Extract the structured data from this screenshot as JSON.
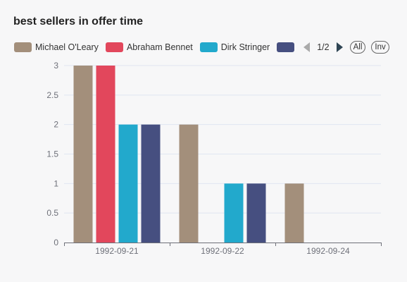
{
  "chart_data": {
    "type": "bar",
    "title": "best sellers in offer time",
    "categories": [
      "1992-09-21",
      "1992-09-22",
      "1992-09-24"
    ],
    "series": [
      {
        "name": "Michael O'Leary",
        "color": "#a38f7b",
        "values": [
          3,
          2,
          1
        ]
      },
      {
        "name": "Abraham Bennet",
        "color": "#e2475c",
        "values": [
          3,
          0,
          0
        ]
      },
      {
        "name": "Dirk Stringer",
        "color": "#22a9cc",
        "values": [
          2,
          1,
          0
        ]
      },
      {
        "name": "",
        "color": "#464f80",
        "values": [
          2,
          1,
          0
        ]
      }
    ],
    "yticks": [
      "0",
      "0.5",
      "1",
      "1.5",
      "2",
      "2.5",
      "3"
    ],
    "ylim": [
      0,
      3
    ],
    "grid": true,
    "legend_position": "top-left"
  },
  "legend": {
    "page": "1/2",
    "all_label": "All",
    "inverse_label": "Inv"
  }
}
